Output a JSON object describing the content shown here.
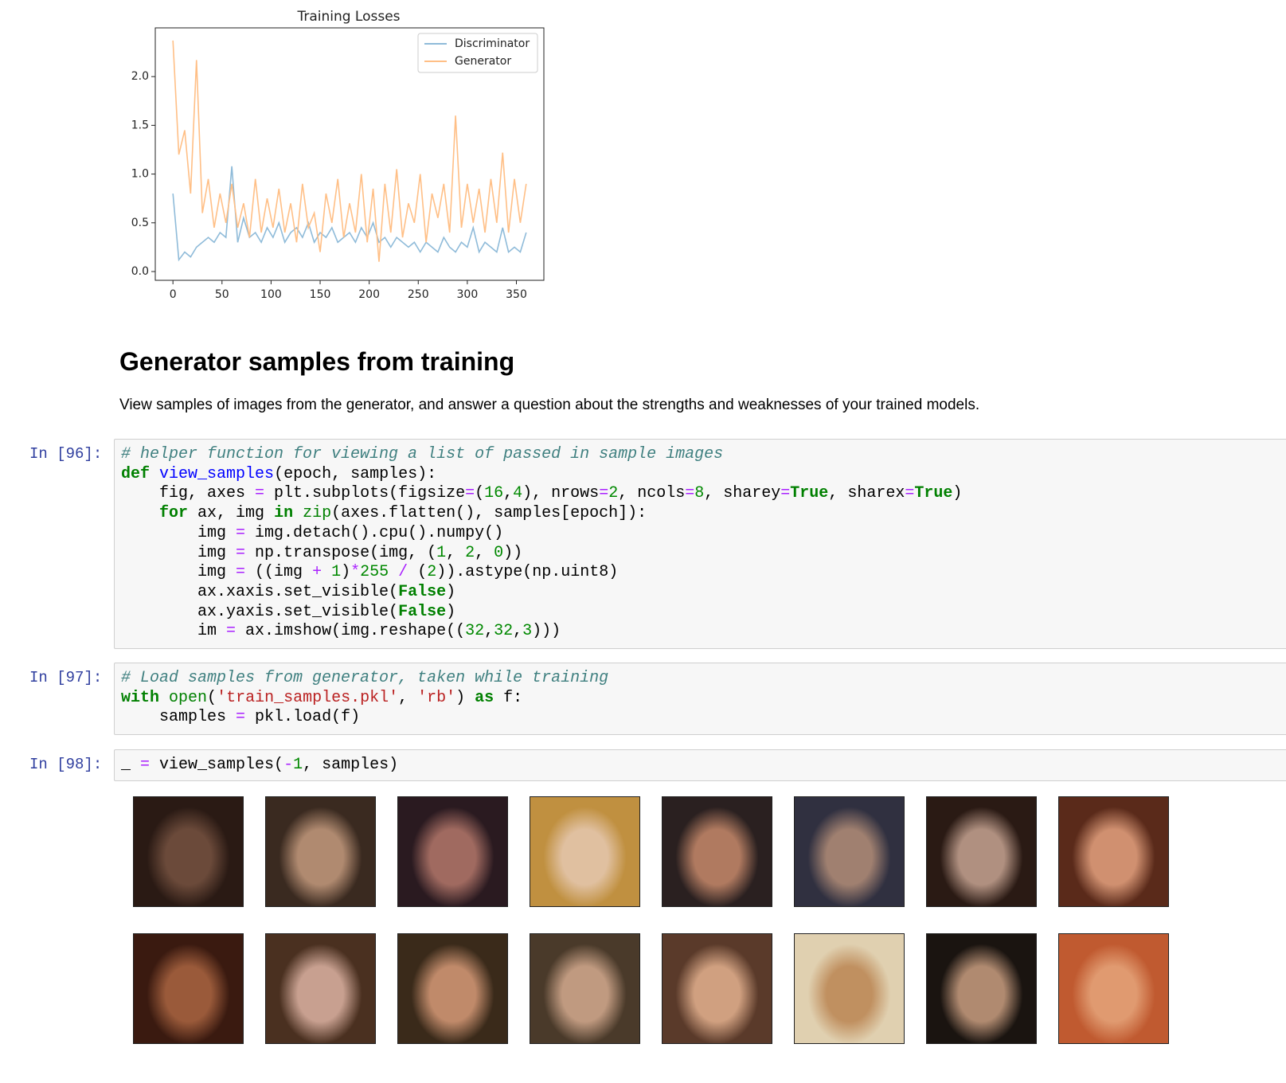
{
  "chart_data": {
    "type": "line",
    "title": "Training Losses",
    "x": [
      0,
      6,
      12,
      18,
      24,
      30,
      36,
      42,
      48,
      54,
      60,
      66,
      72,
      78,
      84,
      90,
      96,
      102,
      108,
      114,
      120,
      126,
      132,
      138,
      144,
      150,
      156,
      162,
      168,
      174,
      180,
      186,
      192,
      198,
      204,
      210,
      216,
      222,
      228,
      234,
      240,
      246,
      252,
      258,
      264,
      270,
      276,
      282,
      288,
      294,
      300,
      306,
      312,
      318,
      324,
      330,
      336,
      342,
      348,
      354,
      360
    ],
    "series": [
      {
        "name": "Discriminator",
        "color": "#8fbbd9",
        "values": [
          0.8,
          0.12,
          0.2,
          0.15,
          0.25,
          0.3,
          0.35,
          0.3,
          0.4,
          0.35,
          1.08,
          0.3,
          0.55,
          0.35,
          0.4,
          0.3,
          0.45,
          0.35,
          0.5,
          0.3,
          0.4,
          0.45,
          0.35,
          0.5,
          0.3,
          0.4,
          0.35,
          0.45,
          0.3,
          0.35,
          0.4,
          0.3,
          0.45,
          0.35,
          0.5,
          0.3,
          0.35,
          0.25,
          0.35,
          0.3,
          0.25,
          0.3,
          0.2,
          0.3,
          0.25,
          0.2,
          0.35,
          0.25,
          0.2,
          0.3,
          0.25,
          0.45,
          0.2,
          0.3,
          0.25,
          0.2,
          0.45,
          0.2,
          0.25,
          0.2,
          0.4
        ]
      },
      {
        "name": "Generator",
        "color": "#ffbf86",
        "values": [
          2.37,
          1.2,
          1.45,
          0.8,
          2.17,
          0.6,
          0.95,
          0.45,
          0.8,
          0.5,
          0.9,
          0.45,
          0.7,
          0.35,
          0.95,
          0.4,
          0.75,
          0.45,
          0.85,
          0.4,
          0.7,
          0.3,
          0.9,
          0.45,
          0.6,
          0.2,
          0.8,
          0.5,
          0.95,
          0.35,
          0.7,
          0.4,
          1.0,
          0.3,
          0.85,
          0.1,
          0.9,
          0.4,
          1.05,
          0.35,
          0.7,
          0.5,
          1.0,
          0.3,
          0.8,
          0.55,
          0.9,
          0.4,
          1.6,
          0.45,
          0.9,
          0.5,
          0.85,
          0.4,
          0.95,
          0.5,
          1.22,
          0.4,
          0.95,
          0.5,
          0.9
        ]
      }
    ],
    "xlim": [
      -18,
      378
    ],
    "ylim": [
      -0.09,
      2.5
    ],
    "xticks": [
      0,
      50,
      100,
      150,
      200,
      250,
      300,
      350
    ],
    "yticks": [
      {
        "value": 0,
        "label": "0.0"
      },
      {
        "value": 0.5,
        "label": "0.5"
      },
      {
        "value": 1,
        "label": "1.0"
      },
      {
        "value": 1.5,
        "label": "1.5"
      },
      {
        "value": 2,
        "label": "2.0"
      }
    ],
    "legend": "upper right",
    "grid": false
  },
  "heading": "Generator samples from training",
  "paragraph": "View samples of images from the generator, and answer a question about the strengths and weaknesses of your trained models.",
  "cells": [
    {
      "prompt": "In [96]:",
      "lines": [
        "# helper function for viewing a list of passed in sample images",
        "def view_samples(epoch, samples):",
        "    fig, axes = plt.subplots(figsize=(16,4), nrows=2, ncols=8, sharey=True, sharex=True)",
        "    for ax, img in zip(axes.flatten(), samples[epoch]):",
        "        img = img.detach().cpu().numpy()",
        "        img = np.transpose(img, (1, 2, 0))",
        "        img = ((img + 1)*255 / (2)).astype(np.uint8)",
        "        ax.xaxis.set_visible(False)",
        "        ax.yaxis.set_visible(False)",
        "        im = ax.imshow(img.reshape((32,32,3)))"
      ]
    },
    {
      "prompt": "In [97]:",
      "lines": [
        "# Load samples from generator, taken while training",
        "with open('train_samples.pkl', 'rb') as f:",
        "    samples = pkl.load(f)"
      ]
    },
    {
      "prompt": "In [98]:",
      "lines": [
        "_ = view_samples(-1, samples)"
      ]
    }
  ]
}
